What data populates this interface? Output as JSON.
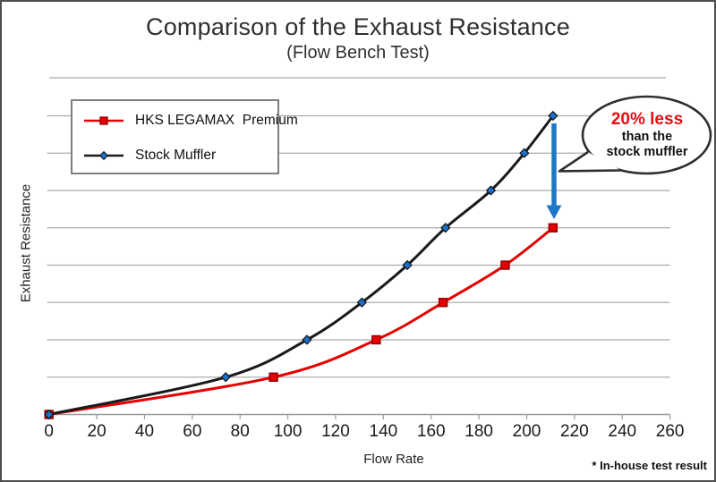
{
  "header": {
    "title": "Comparison of the Exhaust Resistance",
    "subtitle": "(Flow Bench Test)"
  },
  "chart_data": {
    "type": "line",
    "title": "Comparison of the Exhaust Resistance",
    "subtitle": "(Flow Bench Test)",
    "xlabel": "Flow Rate",
    "ylabel": "Exhaust Resistance",
    "xlim": [
      0,
      260
    ],
    "x_ticks": [
      0,
      20,
      40,
      60,
      80,
      100,
      120,
      140,
      160,
      180,
      200,
      220,
      240,
      260
    ],
    "ylim": [
      0,
      8.5
    ],
    "y_unit": "relative gridline units (y axis unlabeled)",
    "grid": "horizontal gridlines at units 1-8",
    "legend_position": "top-left",
    "grid_color": "#ababab",
    "series": [
      {
        "name": "HKS LEGAMAX  Premium",
        "color": "#e60000",
        "marker": "square",
        "marker_fill": "#e60000",
        "marker_stroke": "#8b0000",
        "points": [
          [
            0,
            0
          ],
          [
            94,
            1
          ],
          [
            137,
            2
          ],
          [
            165,
            3
          ],
          [
            191,
            4
          ],
          [
            211,
            5
          ]
        ]
      },
      {
        "name": "Stock Muffler",
        "color": "#1a1a1a",
        "marker": "diamond",
        "marker_fill": "#1c6fc8",
        "marker_stroke": "#111111",
        "points": [
          [
            0,
            0
          ],
          [
            74,
            1
          ],
          [
            108,
            2
          ],
          [
            131,
            3
          ],
          [
            150,
            4
          ],
          [
            166,
            5
          ],
          [
            185,
            6
          ],
          [
            199,
            7
          ],
          [
            211,
            8
          ]
        ]
      }
    ]
  },
  "annotation": {
    "line1": "20% less",
    "line2": "than the",
    "line3": "stock muffler",
    "accent_color": "#e60e0e",
    "arrow_color": "#1e78c6",
    "bubble_border_color": "#2d2d2d"
  },
  "footnote": "* In-house test result"
}
